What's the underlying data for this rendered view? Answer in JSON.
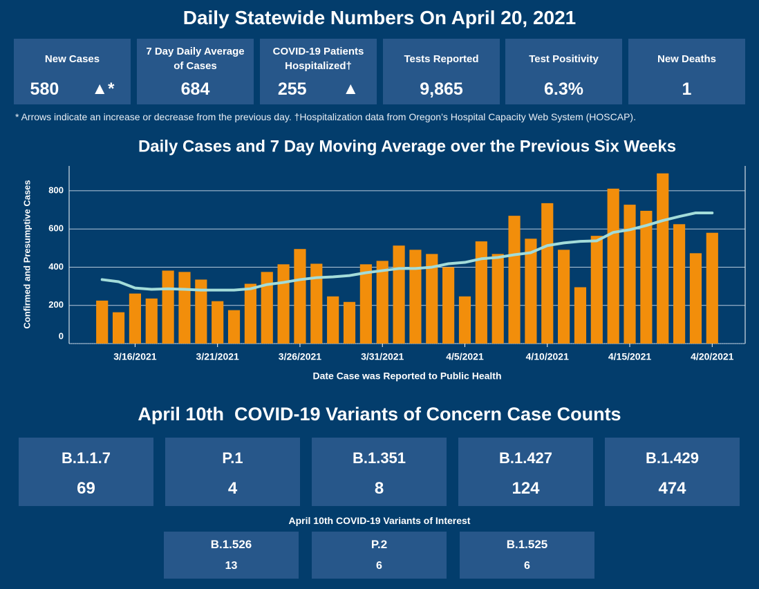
{
  "header": {
    "title": "Daily Statewide Numbers On April 20, 2021"
  },
  "stats": [
    {
      "label": "New Cases",
      "value": 580,
      "indicator": "▲*"
    },
    {
      "label": "7 Day Daily Average of Cases",
      "value": 684
    },
    {
      "label": "COVID-19 Patients Hospitalized†",
      "value": 255,
      "indicator": "▲"
    },
    {
      "label": "Tests Reported",
      "value": 9865,
      "value_label": "9,865"
    },
    {
      "label": "Test Positivity",
      "value": 6.3,
      "value_label": "6.3%"
    },
    {
      "label": "New Deaths",
      "value": 1
    }
  ],
  "footnote": "* Arrows indicate an increase or decrease from the previous day. †Hospitalization data from Oregon’s Hospital Capacity Web System (HOSCAP).",
  "chart_data": {
    "type": "bar",
    "title": "Daily Cases and 7 Day Moving Average over the Previous Six Weeks",
    "x_label": "Date Case was Reported to Public Health",
    "y_label": "Confirmed and Presumptive Cases",
    "x": [
      "2021-03-14",
      "2021-03-15",
      "2021-03-16",
      "2021-03-17",
      "2021-03-18",
      "2021-03-19",
      "2021-03-20",
      "2021-03-21",
      "2021-03-22",
      "2021-03-23",
      "2021-03-24",
      "2021-03-25",
      "2021-03-26",
      "2021-03-27",
      "2021-03-28",
      "2021-03-29",
      "2021-03-30",
      "2021-03-31",
      "2021-04-01",
      "2021-04-02",
      "2021-04-03",
      "2021-04-04",
      "2021-04-05",
      "2021-04-06",
      "2021-04-07",
      "2021-04-08",
      "2021-04-09",
      "2021-04-10",
      "2021-04-11",
      "2021-04-12",
      "2021-04-13",
      "2021-04-14",
      "2021-04-15",
      "2021-04-16",
      "2021-04-17",
      "2021-04-18",
      "2021-04-19",
      "2021-04-20"
    ],
    "series": [
      {
        "type": "bar",
        "color": "#f28e0b",
        "values": [
          225,
          164,
          262,
          236,
          382,
          375,
          335,
          222,
          175,
          313,
          375,
          415,
          495,
          418,
          247,
          218,
          415,
          433,
          513,
          491,
          469,
          400,
          247,
          535,
          469,
          669,
          549,
          735,
          491,
          295,
          564,
          811,
          727,
          695,
          891,
          625,
          473,
          580
        ]
      },
      {
        "type": "line",
        "color": "#a3dcd9",
        "values": [
          335,
          324,
          291,
          284,
          287,
          284,
          280,
          280,
          280,
          287,
          309,
          320,
          335,
          345,
          349,
          356,
          371,
          382,
          393,
          393,
          400,
          418,
          425,
          444,
          451,
          465,
          476,
          513,
          527,
          535,
          538,
          582,
          596,
          618,
          644,
          665,
          684,
          684
        ]
      }
    ],
    "xlim": [
      "2021-03-12",
      "2021-04-22"
    ],
    "xticks": [
      {
        "value": "2021-03-16",
        "label": "3/16/2021"
      },
      {
        "value": "2021-03-21",
        "label": "3/21/2021"
      },
      {
        "value": "2021-03-26",
        "label": "3/26/2021"
      },
      {
        "value": "2021-03-31",
        "label": "3/31/2021"
      },
      {
        "value": "2021-04-05",
        "label": "4/5/2021"
      },
      {
        "value": "2021-04-10",
        "label": "4/10/2021"
      },
      {
        "value": "2021-04-15",
        "label": "4/15/2021"
      },
      {
        "value": "2021-04-20",
        "label": "4/20/2021"
      }
    ],
    "ylim": [
      0,
      930
    ],
    "yticks": [
      0,
      200,
      400,
      600,
      800
    ],
    "grid": true
  },
  "variants": {
    "title": "April 10th  COVID-19 Variants of Concern Case Counts",
    "items": [
      {
        "name": "B.1.1.7",
        "value": 69
      },
      {
        "name": "P.1",
        "value": 4
      },
      {
        "name": "B.1.351",
        "value": 8
      },
      {
        "name": "B.1.427",
        "value": 124
      },
      {
        "name": "B.1.429",
        "value": 474
      }
    ]
  },
  "interest": {
    "title": "April 10th COVID-19 Variants of Interest",
    "items": [
      {
        "name": "B.1.526",
        "value": 13
      },
      {
        "name": "P.2",
        "value": 6
      },
      {
        "name": "B.1.525",
        "value": 6
      }
    ]
  }
}
